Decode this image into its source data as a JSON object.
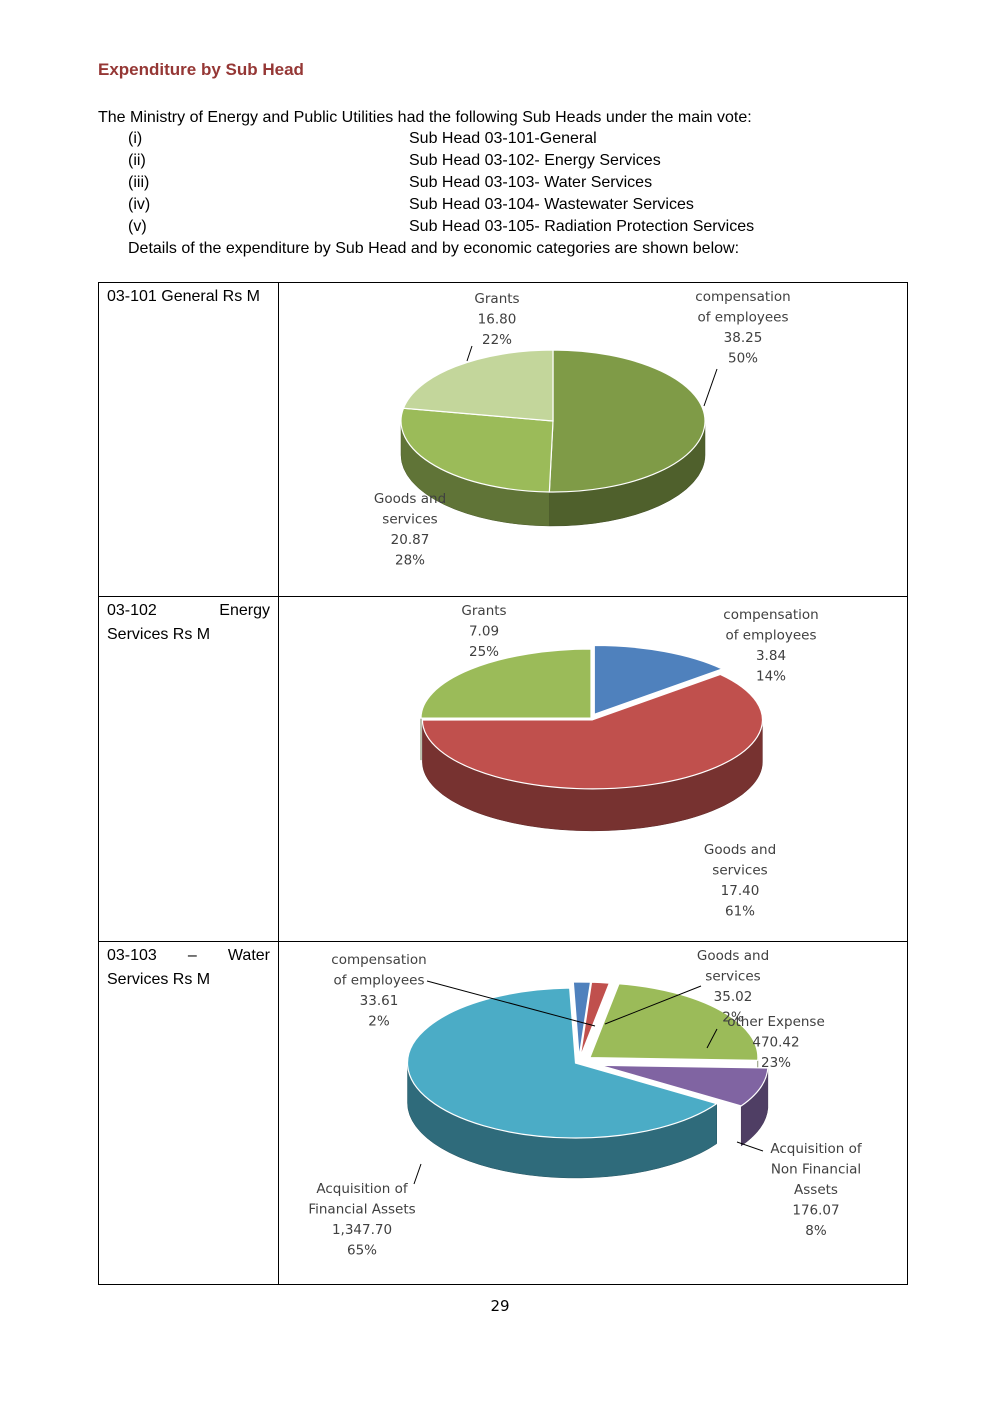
{
  "heading": "Expenditure by Sub Head",
  "intro": "The Ministry of Energy and Public Utilities had the following Sub Heads under the main vote:",
  "sub_heads": [
    {
      "num": "(i)",
      "label": "Sub Head 03-101-General"
    },
    {
      "num": "(ii)",
      "label": "Sub Head 03-102- Energy Services"
    },
    {
      "num": "(iii)",
      "label": "Sub Head 03-103- Water Services"
    },
    {
      "num": "(iv)",
      "label": "Sub Head 03-104- Wastewater Services"
    },
    {
      "num": "(v)",
      "label": "Sub Head 03-105- Radiation Protection Services"
    }
  ],
  "details": "Details of the expenditure by Sub Head and by economic categories are shown below:",
  "rows": [
    {
      "label_line1_a": "03-101 General Rs M"
    },
    {
      "label_line1_a": "03-102",
      "label_line1_b": "Energy",
      "label_line2": "Services Rs M"
    },
    {
      "label_line1_a": "03-103",
      "label_line1_m": "–",
      "label_line1_b": "Water",
      "label_line2": "Services Rs M"
    }
  ],
  "chart_data": [
    {
      "type": "pie",
      "slices": [
        {
          "label": [
            "compensation",
            "of employees"
          ],
          "value": "38.25",
          "percent": "50%",
          "v": 38.25,
          "color": "#7f9b47"
        },
        {
          "label": [
            "Goods and",
            "services"
          ],
          "value": "20.87",
          "percent": "28%",
          "v": 20.87,
          "color": "#9bbb59"
        },
        {
          "label": [
            "Grants"
          ],
          "value": "16.80",
          "percent": "22%",
          "v": 16.8,
          "color": "#c3d69b"
        }
      ]
    },
    {
      "type": "pie",
      "slices": [
        {
          "label": [
            "compensation",
            "of employees"
          ],
          "value": "3.84",
          "percent": "14%",
          "v": 3.84,
          "color": "#4f81bd"
        },
        {
          "label": [
            "Goods and",
            "services"
          ],
          "value": "17.40",
          "percent": "61%",
          "v": 17.4,
          "color": "#c0504d"
        },
        {
          "label": [
            "Grants"
          ],
          "value": "7.09",
          "percent": "25%",
          "v": 7.09,
          "color": "#9bbb59"
        }
      ]
    },
    {
      "type": "pie",
      "slices": [
        {
          "label": [
            "compensation",
            "of employees"
          ],
          "value": "33.61",
          "percent": "2%",
          "v": 33.61,
          "color": "#4f81bd"
        },
        {
          "label": [
            "Goods and",
            "services"
          ],
          "value": "35.02",
          "percent": "2%",
          "v": 35.02,
          "color": "#c0504d"
        },
        {
          "label": [
            "other Expense"
          ],
          "value": "470.42",
          "percent": "23%",
          "v": 470.42,
          "color": "#9bbb59"
        },
        {
          "label": [
            "Acquisition of",
            "Non Financial",
            "Assets"
          ],
          "value": "176.07",
          "percent": "8%",
          "v": 176.07,
          "color": "#8064a2"
        },
        {
          "label": [
            "Acquisition of",
            "Financial Assets"
          ],
          "value": "1,347.70",
          "percent": "65%",
          "v": 1347.7,
          "color": "#4bacc6"
        }
      ]
    }
  ],
  "page_number": "29"
}
